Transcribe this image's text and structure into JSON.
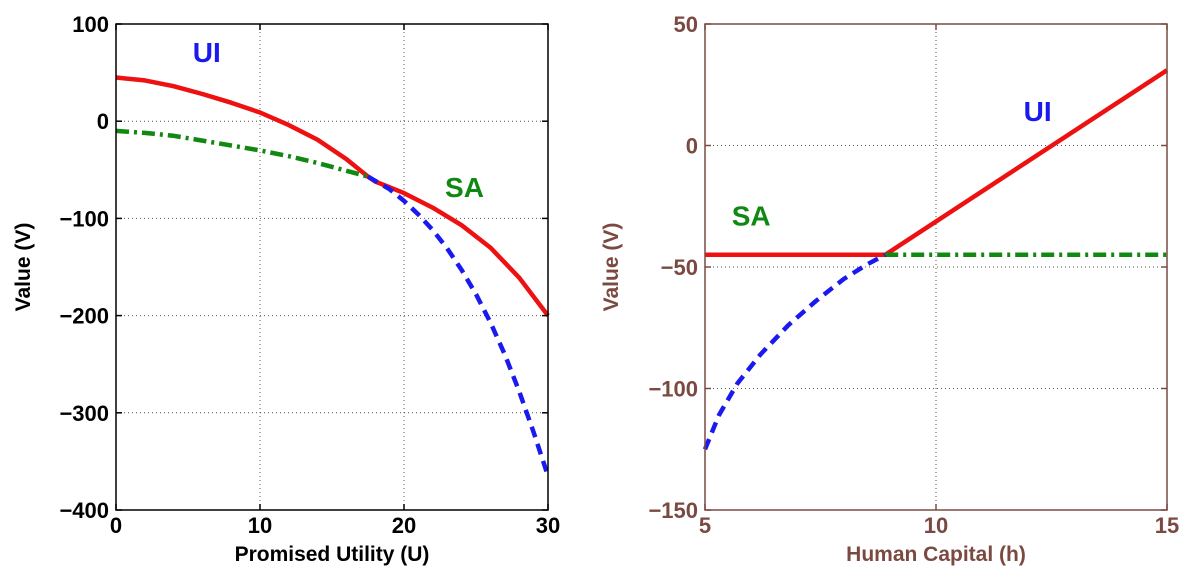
{
  "chart_data": [
    {
      "type": "line",
      "xlabel": "Promised Utility (U)",
      "ylabel": "Value (V)",
      "xlim": [
        0,
        30
      ],
      "ylim": [
        -400,
        100
      ],
      "xticks": [
        0,
        10,
        20,
        30
      ],
      "yticks": [
        -400,
        -300,
        -200,
        -100,
        0,
        100
      ],
      "xtick_labels": [
        "0",
        "10",
        "20",
        "30"
      ],
      "ytick_labels": [
        "−400",
        "−300",
        "−200",
        "−100",
        "0",
        "100"
      ],
      "grid": true,
      "axis_color": "#000000",
      "series": [
        {
          "color": "#ee1111",
          "style": "solid",
          "x": [
            0,
            2,
            4,
            6,
            8,
            10,
            12,
            14,
            16,
            17.5,
            18,
            20,
            22,
            24,
            26,
            28,
            30
          ],
          "y": [
            45,
            42,
            36,
            28,
            19,
            9,
            -4,
            -19,
            -39,
            -57,
            -62,
            -74,
            -89,
            -107,
            -130,
            -161,
            -200
          ]
        },
        {
          "color": "#118811",
          "style": "dashdot",
          "x": [
            0,
            2,
            4,
            6,
            8,
            10,
            12,
            14,
            16,
            17.5
          ],
          "y": [
            -10,
            -12,
            -15,
            -20,
            -25,
            -30,
            -36,
            -43,
            -51,
            -57
          ]
        },
        {
          "color": "#1a1aee",
          "style": "dashed",
          "x": [
            17.5,
            19,
            20,
            21,
            22,
            23,
            24,
            25,
            26,
            27,
            28,
            29,
            30
          ],
          "y": [
            -57,
            -70,
            -82,
            -96,
            -112,
            -131,
            -153,
            -178,
            -207,
            -240,
            -278,
            -320,
            -365
          ]
        }
      ],
      "annotations": [
        {
          "text": "UI",
          "color": "#1a1aee",
          "x": 6.3,
          "y": 61
        },
        {
          "text": "SA",
          "color": "#118811",
          "x": 24.2,
          "y": -78
        }
      ]
    },
    {
      "type": "line",
      "xlabel": "Human Capital (h)",
      "ylabel": "Value (V)",
      "xlim": [
        5,
        15
      ],
      "ylim": [
        -150,
        50
      ],
      "xticks": [
        5,
        10,
        15
      ],
      "yticks": [
        -150,
        -100,
        -50,
        0,
        50
      ],
      "xtick_labels": [
        "5",
        "10",
        "15"
      ],
      "ytick_labels": [
        "−150",
        "−100",
        "−50",
        "0",
        "50"
      ],
      "grid": true,
      "axis_color": "#7a4a42",
      "series": [
        {
          "color": "#ee1111",
          "style": "solid",
          "x": [
            5,
            8.9,
            15
          ],
          "y": [
            -45,
            -45,
            31
          ]
        },
        {
          "color": "#118811",
          "style": "dashdot",
          "x": [
            8.9,
            15
          ],
          "y": [
            -45,
            -45
          ]
        },
        {
          "color": "#1a1aee",
          "style": "dashed",
          "x": [
            5,
            5.3,
            5.7,
            6.2,
            6.8,
            7.4,
            8.0,
            8.5,
            8.9
          ],
          "y": [
            -125,
            -111,
            -98,
            -86,
            -74,
            -64,
            -55,
            -49,
            -45
          ]
        }
      ],
      "annotations": [
        {
          "text": "UI",
          "color": "#1a1aee",
          "x": 12.2,
          "y": 10
        },
        {
          "text": "SA",
          "color": "#118811",
          "x": 6.0,
          "y": -33
        }
      ]
    }
  ]
}
